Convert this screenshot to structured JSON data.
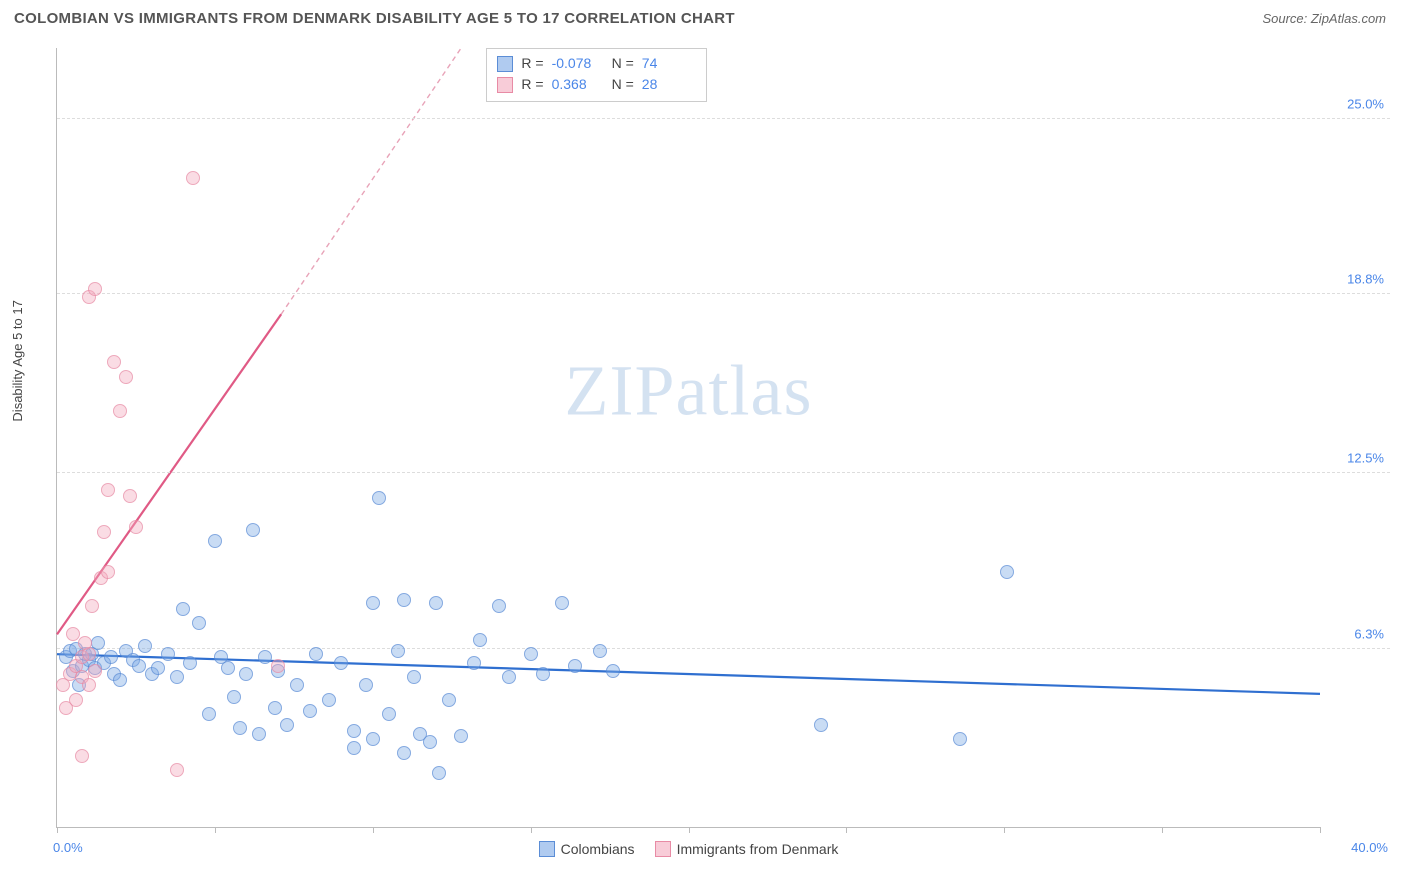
{
  "title": "COLOMBIAN VS IMMIGRANTS FROM DENMARK DISABILITY AGE 5 TO 17 CORRELATION CHART",
  "source_label": "Source: ZipAtlas.com",
  "y_axis_label": "Disability Age 5 to 17",
  "watermark_a": "ZIP",
  "watermark_b": "atlas",
  "chart": {
    "type": "scatter",
    "xlim": [
      0,
      40
    ],
    "ylim": [
      0,
      27.5
    ],
    "x_ticks": [
      0,
      5,
      10,
      15,
      20,
      25,
      30,
      35,
      40
    ],
    "x_min_label": "0.0%",
    "x_max_label": "40.0%",
    "y_ticks": [
      {
        "v": 6.3,
        "label": "6.3%"
      },
      {
        "v": 12.5,
        "label": "12.5%"
      },
      {
        "v": 18.8,
        "label": "18.8%"
      },
      {
        "v": 25.0,
        "label": "25.0%"
      }
    ],
    "grid_color": "#dddddd",
    "axis_color": "#bbbbbb",
    "background": "#ffffff",
    "series": [
      {
        "name": "Colombians",
        "color_fill": "rgba(124,169,230,0.55)",
        "color_stroke": "#5b8dd6",
        "trend": {
          "x1": 0,
          "y1": 6.1,
          "x2": 40,
          "y2": 4.7,
          "color": "#2f6fd0",
          "width": 2.2,
          "dash": false
        },
        "points": [
          [
            0.3,
            6.0
          ],
          [
            0.4,
            6.2
          ],
          [
            0.5,
            5.5
          ],
          [
            0.6,
            6.3
          ],
          [
            0.7,
            5.0
          ],
          [
            0.8,
            5.7
          ],
          [
            0.9,
            6.1
          ],
          [
            1.0,
            5.9
          ],
          [
            1.1,
            6.1
          ],
          [
            1.2,
            5.6
          ],
          [
            1.3,
            6.5
          ],
          [
            1.5,
            5.8
          ],
          [
            1.7,
            6.0
          ],
          [
            1.8,
            5.4
          ],
          [
            2.0,
            5.2
          ],
          [
            2.2,
            6.2
          ],
          [
            2.4,
            5.9
          ],
          [
            2.6,
            5.7
          ],
          [
            2.8,
            6.4
          ],
          [
            3.0,
            5.4
          ],
          [
            3.2,
            5.6
          ],
          [
            3.5,
            6.1
          ],
          [
            3.8,
            5.3
          ],
          [
            4.0,
            7.7
          ],
          [
            4.2,
            5.8
          ],
          [
            4.5,
            7.2
          ],
          [
            4.8,
            4.0
          ],
          [
            5.0,
            10.1
          ],
          [
            5.2,
            6.0
          ],
          [
            5.4,
            5.6
          ],
          [
            5.8,
            3.5
          ],
          [
            5.6,
            4.6
          ],
          [
            6.0,
            5.4
          ],
          [
            6.2,
            10.5
          ],
          [
            6.4,
            3.3
          ],
          [
            6.6,
            6.0
          ],
          [
            6.9,
            4.2
          ],
          [
            7.0,
            5.5
          ],
          [
            7.3,
            3.6
          ],
          [
            7.6,
            5.0
          ],
          [
            8.0,
            4.1
          ],
          [
            8.2,
            6.1
          ],
          [
            8.6,
            4.5
          ],
          [
            9.0,
            5.8
          ],
          [
            9.4,
            2.8
          ],
          [
            9.4,
            3.4
          ],
          [
            9.8,
            5.0
          ],
          [
            10.0,
            7.9
          ],
          [
            10.0,
            3.1
          ],
          [
            10.2,
            11.6
          ],
          [
            10.5,
            4.0
          ],
          [
            10.8,
            6.2
          ],
          [
            11.0,
            2.6
          ],
          [
            11.0,
            8.0
          ],
          [
            11.3,
            5.3
          ],
          [
            11.5,
            3.3
          ],
          [
            11.8,
            3.0
          ],
          [
            12.0,
            7.9
          ],
          [
            12.1,
            1.9
          ],
          [
            12.4,
            4.5
          ],
          [
            12.8,
            3.2
          ],
          [
            13.2,
            5.8
          ],
          [
            13.4,
            6.6
          ],
          [
            14.0,
            7.8
          ],
          [
            14.3,
            5.3
          ],
          [
            15.0,
            6.1
          ],
          [
            15.4,
            5.4
          ],
          [
            16.0,
            7.9
          ],
          [
            16.4,
            5.7
          ],
          [
            17.2,
            6.2
          ],
          [
            17.6,
            5.5
          ],
          [
            24.2,
            3.6
          ],
          [
            28.6,
            3.1
          ],
          [
            30.1,
            9.0
          ]
        ]
      },
      {
        "name": "Immigrants from Denmark",
        "color_fill": "rgba(244,170,190,0.55)",
        "color_stroke": "#e88ba5",
        "trend_solid": {
          "x1": 0,
          "y1": 6.8,
          "x2": 7.1,
          "y2": 18.1,
          "color": "#e05a85",
          "width": 2.2
        },
        "trend_dash": {
          "x1": 7.1,
          "y1": 18.1,
          "x2": 12.8,
          "y2": 27.5,
          "color": "#e8a3b8",
          "width": 1.4
        },
        "points": [
          [
            0.2,
            5.0
          ],
          [
            0.3,
            4.2
          ],
          [
            0.4,
            5.4
          ],
          [
            0.5,
            6.8
          ],
          [
            0.6,
            5.7
          ],
          [
            0.6,
            4.5
          ],
          [
            0.8,
            5.3
          ],
          [
            0.8,
            6.0
          ],
          [
            0.9,
            6.5
          ],
          [
            1.0,
            5.0
          ],
          [
            1.0,
            6.1
          ],
          [
            1.1,
            7.8
          ],
          [
            1.2,
            5.5
          ],
          [
            1.4,
            8.8
          ],
          [
            1.5,
            10.4
          ],
          [
            1.6,
            9.0
          ],
          [
            1.0,
            18.7
          ],
          [
            1.2,
            19.0
          ],
          [
            1.6,
            11.9
          ],
          [
            1.8,
            16.4
          ],
          [
            2.0,
            14.7
          ],
          [
            2.2,
            15.9
          ],
          [
            2.3,
            11.7
          ],
          [
            2.5,
            10.6
          ],
          [
            3.8,
            2.0
          ],
          [
            0.8,
            2.5
          ],
          [
            4.3,
            22.9
          ],
          [
            7.0,
            5.7
          ]
        ]
      }
    ],
    "stats": [
      {
        "swatch": "blue",
        "r_label": "R =",
        "r": "-0.078",
        "n_label": "N =",
        "n": "74"
      },
      {
        "swatch": "pink",
        "r_label": "R =",
        "r": "0.368",
        "n_label": "N =",
        "n": "28"
      }
    ],
    "bottom_legend": [
      {
        "swatch": "blue",
        "label": "Colombians"
      },
      {
        "swatch": "pink",
        "label": "Immigrants from Denmark"
      }
    ]
  }
}
